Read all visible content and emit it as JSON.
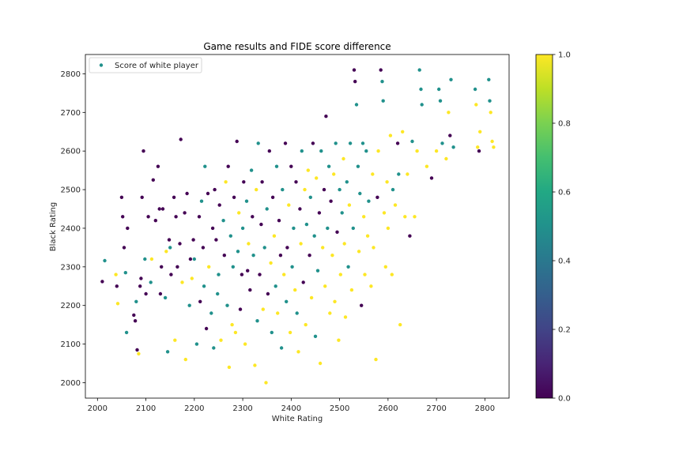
{
  "chart_data": {
    "type": "scatter",
    "title": "Game results and FIDE score difference",
    "xlabel": "White Rating",
    "ylabel": "Black Rating",
    "xlim": [
      1975,
      2850
    ],
    "ylim": [
      1960,
      2850
    ],
    "xticks": [
      2000,
      2100,
      2200,
      2300,
      2400,
      2500,
      2600,
      2700,
      2800
    ],
    "yticks": [
      2000,
      2100,
      2200,
      2300,
      2400,
      2500,
      2600,
      2700,
      2800
    ],
    "grid": false,
    "legend": {
      "placement": "top-left",
      "entries": [
        "Score of white player"
      ]
    },
    "colorbar": {
      "colormap": "viridis",
      "min": 0.0,
      "max": 1.0,
      "ticks": [
        "0.0",
        "0.2",
        "0.4",
        "0.6",
        "0.8",
        "1.0"
      ]
    },
    "series": [
      {
        "name": "Score of white player",
        "columns": [
          "white_rating",
          "black_rating",
          "score"
        ],
        "points": [
          [
            2010,
            2262,
            0
          ],
          [
            2015,
            2316,
            0.5
          ],
          [
            2038,
            2280,
            1
          ],
          [
            2040,
            2250,
            0
          ],
          [
            2042,
            2205,
            1
          ],
          [
            2050,
            2480,
            0
          ],
          [
            2052,
            2430,
            0
          ],
          [
            2055,
            2350,
            0
          ],
          [
            2058,
            2285,
            0.5
          ],
          [
            2060,
            2130,
            0.5
          ],
          [
            2062,
            2400,
            0
          ],
          [
            2075,
            2175,
            0
          ],
          [
            2078,
            2160,
            0
          ],
          [
            2080,
            2210,
            0.5
          ],
          [
            2082,
            2085,
            0
          ],
          [
            2085,
            2075,
            1
          ],
          [
            2088,
            2250,
            0
          ],
          [
            2090,
            2270,
            0
          ],
          [
            2092,
            2480,
            0
          ],
          [
            2095,
            2600,
            0
          ],
          [
            2098,
            2320,
            0.5
          ],
          [
            2100,
            2230,
            0
          ],
          [
            2105,
            2430,
            0
          ],
          [
            2110,
            2260,
            0.5
          ],
          [
            2112,
            2320,
            1
          ],
          [
            2115,
            2525,
            0
          ],
          [
            2120,
            2420,
            0
          ],
          [
            2125,
            2560,
            0
          ],
          [
            2128,
            2450,
            0
          ],
          [
            2130,
            2230,
            0
          ],
          [
            2132,
            2300,
            0
          ],
          [
            2135,
            2450,
            0
          ],
          [
            2140,
            2220,
            0.5
          ],
          [
            2142,
            2340,
            1
          ],
          [
            2145,
            2080,
            0.5
          ],
          [
            2148,
            2370,
            0
          ],
          [
            2150,
            2350,
            0.5
          ],
          [
            2152,
            2280,
            0
          ],
          [
            2158,
            2480,
            0
          ],
          [
            2160,
            2110,
            1
          ],
          [
            2162,
            2430,
            0
          ],
          [
            2165,
            2300,
            0
          ],
          [
            2170,
            2360,
            0
          ],
          [
            2172,
            2630,
            0
          ],
          [
            2175,
            2260,
            1
          ],
          [
            2180,
            2440,
            0
          ],
          [
            2182,
            2060,
            1
          ],
          [
            2185,
            2490,
            0
          ],
          [
            2190,
            2200,
            0.5
          ],
          [
            2192,
            2320,
            0
          ],
          [
            2195,
            2270,
            1
          ],
          [
            2198,
            2370,
            0
          ],
          [
            2200,
            2320,
            0.5
          ],
          [
            2205,
            2100,
            0.5
          ],
          [
            2210,
            2430,
            0
          ],
          [
            2212,
            2210,
            0
          ],
          [
            2215,
            2470,
            0.5
          ],
          [
            2218,
            2350,
            0
          ],
          [
            2220,
            2250,
            0.5
          ],
          [
            2222,
            2560,
            0.5
          ],
          [
            2225,
            2140,
            0
          ],
          [
            2228,
            2490,
            0
          ],
          [
            2230,
            2300,
            1
          ],
          [
            2235,
            2180,
            0.5
          ],
          [
            2238,
            2400,
            0
          ],
          [
            2240,
            2090,
            0.5
          ],
          [
            2242,
            2500,
            0
          ],
          [
            2245,
            2370,
            0
          ],
          [
            2248,
            2230,
            0.5
          ],
          [
            2250,
            2280,
            0.5
          ],
          [
            2252,
            2460,
            0
          ],
          [
            2255,
            2110,
            1
          ],
          [
            2260,
            2420,
            0.5
          ],
          [
            2262,
            2330,
            0
          ],
          [
            2265,
            2520,
            1
          ],
          [
            2268,
            2200,
            0.5
          ],
          [
            2270,
            2560,
            0
          ],
          [
            2272,
            2040,
            1
          ],
          [
            2275,
            2380,
            0.5
          ],
          [
            2278,
            2150,
            1
          ],
          [
            2280,
            2300,
            0.5
          ],
          [
            2282,
            2480,
            0
          ],
          [
            2285,
            2130,
            1
          ],
          [
            2288,
            2625,
            0
          ],
          [
            2290,
            2340,
            0.5
          ],
          [
            2292,
            2440,
            1
          ],
          [
            2295,
            2190,
            0
          ],
          [
            2298,
            2280,
            0
          ],
          [
            2300,
            2400,
            0.5
          ],
          [
            2302,
            2520,
            0
          ],
          [
            2305,
            2100,
            1
          ],
          [
            2308,
            2470,
            0.5
          ],
          [
            2310,
            2290,
            0
          ],
          [
            2312,
            2360,
            1
          ],
          [
            2315,
            2240,
            0
          ],
          [
            2318,
            2550,
            0.5
          ],
          [
            2320,
            2430,
            0
          ],
          [
            2322,
            2330,
            0.5
          ],
          [
            2325,
            2045,
            1
          ],
          [
            2328,
            2500,
            1
          ],
          [
            2330,
            2160,
            0.5
          ],
          [
            2332,
            2620,
            0.5
          ],
          [
            2335,
            2280,
            0
          ],
          [
            2338,
            2410,
            0
          ],
          [
            2340,
            2520,
            0
          ],
          [
            2342,
            2190,
            1
          ],
          [
            2345,
            2350,
            0.5
          ],
          [
            2348,
            2000,
            1
          ],
          [
            2350,
            2450,
            0.5
          ],
          [
            2352,
            2230,
            0
          ],
          [
            2355,
            2600,
            0
          ],
          [
            2358,
            2310,
            1
          ],
          [
            2360,
            2130,
            0.5
          ],
          [
            2362,
            2480,
            0
          ],
          [
            2365,
            2380,
            1
          ],
          [
            2368,
            2250,
            0.5
          ],
          [
            2370,
            2560,
            0.5
          ],
          [
            2372,
            2180,
            1
          ],
          [
            2375,
            2420,
            0
          ],
          [
            2378,
            2330,
            0
          ],
          [
            2380,
            2090,
            0.5
          ],
          [
            2382,
            2500,
            0.5
          ],
          [
            2385,
            2280,
            1
          ],
          [
            2388,
            2620,
            0
          ],
          [
            2390,
            2210,
            0.5
          ],
          [
            2392,
            2350,
            0
          ],
          [
            2395,
            2460,
            1
          ],
          [
            2398,
            2130,
            1
          ],
          [
            2400,
            2560,
            0
          ],
          [
            2402,
            2300,
            0.5
          ],
          [
            2405,
            2400,
            0.5
          ],
          [
            2408,
            2240,
            1
          ],
          [
            2410,
            2520,
            0
          ],
          [
            2412,
            2180,
            0.5
          ],
          [
            2415,
            2080,
            1
          ],
          [
            2418,
            2450,
            0
          ],
          [
            2420,
            2360,
            1
          ],
          [
            2422,
            2600,
            0.5
          ],
          [
            2425,
            2260,
            0
          ],
          [
            2428,
            2500,
            1
          ],
          [
            2430,
            2150,
            1
          ],
          [
            2432,
            2410,
            0.5
          ],
          [
            2435,
            2550,
            1
          ],
          [
            2438,
            2330,
            0
          ],
          [
            2440,
            2480,
            0.5
          ],
          [
            2442,
            2220,
            1
          ],
          [
            2445,
            2620,
            0
          ],
          [
            2448,
            2380,
            0.5
          ],
          [
            2450,
            2120,
            0.5
          ],
          [
            2452,
            2530,
            1
          ],
          [
            2455,
            2290,
            0.5
          ],
          [
            2458,
            2440,
            0
          ],
          [
            2460,
            2050,
            1
          ],
          [
            2462,
            2600,
            0.5
          ],
          [
            2465,
            2350,
            1
          ],
          [
            2468,
            2500,
            0
          ],
          [
            2470,
            2250,
            1
          ],
          [
            2472,
            2690,
            0
          ],
          [
            2475,
            2400,
            0.5
          ],
          [
            2478,
            2560,
            0.5
          ],
          [
            2480,
            2180,
            1
          ],
          [
            2482,
            2470,
            0
          ],
          [
            2485,
            2330,
            1
          ],
          [
            2488,
            2540,
            1
          ],
          [
            2490,
            2210,
            1
          ],
          [
            2492,
            2620,
            0.5
          ],
          [
            2495,
            2390,
            0
          ],
          [
            2498,
            2110,
            1
          ],
          [
            2500,
            2500,
            0.5
          ],
          [
            2502,
            2280,
            1
          ],
          [
            2505,
            2440,
            0.5
          ],
          [
            2508,
            2580,
            1
          ],
          [
            2510,
            2360,
            1
          ],
          [
            2512,
            2170,
            1
          ],
          [
            2515,
            2520,
            0.5
          ],
          [
            2518,
            2300,
            0.5
          ],
          [
            2520,
            2460,
            1
          ],
          [
            2522,
            2620,
            0.5
          ],
          [
            2525,
            2240,
            1
          ],
          [
            2528,
            2400,
            0.5
          ],
          [
            2530,
            2810,
            0
          ],
          [
            2532,
            2780,
            0
          ],
          [
            2535,
            2720,
            0.5
          ],
          [
            2538,
            2560,
            0.5
          ],
          [
            2540,
            2340,
            1
          ],
          [
            2542,
            2490,
            0.5
          ],
          [
            2545,
            2200,
            0
          ],
          [
            2548,
            2620,
            0.5
          ],
          [
            2550,
            2430,
            1
          ],
          [
            2552,
            2280,
            1
          ],
          [
            2555,
            2600,
            0.5
          ],
          [
            2558,
            2380,
            1
          ],
          [
            2560,
            2470,
            0.5
          ],
          [
            2565,
            2250,
            1
          ],
          [
            2568,
            2540,
            1
          ],
          [
            2570,
            2350,
            1
          ],
          [
            2575,
            2060,
            1
          ],
          [
            2578,
            2480,
            0
          ],
          [
            2580,
            2600,
            1
          ],
          [
            2585,
            2810,
            0
          ],
          [
            2588,
            2780,
            0.5
          ],
          [
            2590,
            2730,
            0.5
          ],
          [
            2592,
            2440,
            1
          ],
          [
            2595,
            2300,
            1
          ],
          [
            2598,
            2520,
            1
          ],
          [
            2600,
            2400,
            1
          ],
          [
            2605,
            2640,
            1
          ],
          [
            2608,
            2280,
            1
          ],
          [
            2610,
            2500,
            0.5
          ],
          [
            2615,
            2460,
            1
          ],
          [
            2620,
            2620,
            0
          ],
          [
            2622,
            2540,
            0.5
          ],
          [
            2625,
            2150,
            1
          ],
          [
            2630,
            2650,
            1
          ],
          [
            2635,
            2430,
            1
          ],
          [
            2640,
            2540,
            1
          ],
          [
            2645,
            2380,
            0
          ],
          [
            2650,
            2625,
            0.5
          ],
          [
            2655,
            2430,
            1
          ],
          [
            2660,
            2600,
            1
          ],
          [
            2665,
            2810,
            0.5
          ],
          [
            2668,
            2760,
            0.5
          ],
          [
            2670,
            2720,
            0.5
          ],
          [
            2680,
            2560,
            1
          ],
          [
            2690,
            2530,
            0
          ],
          [
            2700,
            2600,
            1
          ],
          [
            2705,
            2760,
            0.5
          ],
          [
            2708,
            2730,
            0.5
          ],
          [
            2712,
            2620,
            0.5
          ],
          [
            2720,
            2580,
            1
          ],
          [
            2725,
            2700,
            1
          ],
          [
            2728,
            2640,
            0
          ],
          [
            2730,
            2785,
            0.5
          ],
          [
            2735,
            2610,
            0.5
          ],
          [
            2780,
            2760,
            0.5
          ],
          [
            2782,
            2720,
            1
          ],
          [
            2785,
            2610,
            1
          ],
          [
            2788,
            2600,
            0
          ],
          [
            2790,
            2650,
            1
          ],
          [
            2808,
            2785,
            0.5
          ],
          [
            2810,
            2730,
            0.5
          ],
          [
            2812,
            2700,
            1
          ],
          [
            2815,
            2625,
            1
          ],
          [
            2818,
            2610,
            1
          ]
        ]
      }
    ]
  }
}
